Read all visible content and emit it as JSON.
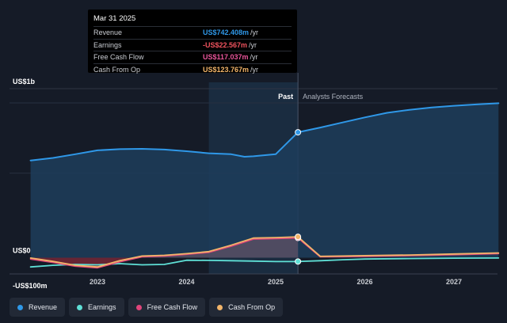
{
  "tooltip": {
    "date": "Mar 31 2025",
    "rows": [
      {
        "label": "Revenue",
        "value": "US$742.408m",
        "unit": "/yr",
        "color": "#2f98e8"
      },
      {
        "label": "Earnings",
        "value": "-US$22.567m",
        "unit": "/yr",
        "color": "#f0535e"
      },
      {
        "label": "Free Cash Flow",
        "value": "US$117.037m",
        "unit": "/yr",
        "color": "#e9559a"
      },
      {
        "label": "Cash From Op",
        "value": "US$123.767m",
        "unit": "/yr",
        "color": "#f2b56a"
      }
    ]
  },
  "legend": [
    {
      "label": "Revenue",
      "color": "#2f98e8"
    },
    {
      "label": "Earnings",
      "color": "#5fe0d6"
    },
    {
      "label": "Free Cash Flow",
      "color": "#e0457b"
    },
    {
      "label": "Cash From Op",
      "color": "#f2b56a"
    }
  ],
  "chart_data": {
    "type": "area",
    "y_tick_labels": [
      "US$1b",
      "US$0",
      "-US$100m"
    ],
    "y_ticks": [
      1000,
      0,
      -100
    ],
    "ylim": [
      -100,
      1000
    ],
    "xlim": [
      2022.2,
      2027.5
    ],
    "x_tick_labels": [
      "2023",
      "2024",
      "2025",
      "2026",
      "2027"
    ],
    "x_ticks": [
      2023,
      2024,
      2025,
      2026,
      2027
    ],
    "past_label": "Past",
    "forecast_label": "Analysts Forecasts",
    "highlight_range": [
      2024.25,
      2025.25
    ],
    "past_end": 2025.25,
    "series": [
      {
        "name": "Revenue",
        "color": "#2f98e8",
        "x": [
          2022.25,
          2022.5,
          2022.75,
          2023.0,
          2023.25,
          2023.5,
          2023.75,
          2024.0,
          2024.25,
          2024.5,
          2024.65,
          2024.75,
          2025.0,
          2025.25,
          2025.5,
          2025.75,
          2026.0,
          2026.25,
          2026.5,
          2026.75,
          2027.0,
          2027.25,
          2027.5
        ],
        "y": [
          575,
          590,
          612,
          635,
          642,
          644,
          640,
          630,
          618,
          612,
          597,
          600,
          612,
          742,
          770,
          800,
          830,
          857,
          875,
          889,
          899,
          907,
          914
        ]
      },
      {
        "name": "Earnings",
        "color": "#5fe0d6",
        "x": [
          2022.25,
          2022.5,
          2022.75,
          2023.0,
          2023.25,
          2023.5,
          2023.75,
          2024.0,
          2024.25,
          2024.5,
          2024.75,
          2025.0,
          2025.25,
          2025.5,
          2025.75,
          2026.0,
          2026.5,
          2027.0,
          2027.5
        ],
        "y": [
          -55,
          -45,
          -40,
          -42,
          -35,
          -42,
          -40,
          -15,
          -16,
          -18,
          -20,
          -23,
          -22.567,
          -18,
          -12,
          -8,
          -5,
          -3,
          -2
        ]
      },
      {
        "name": "Free Cash Flow",
        "color": "#e0457b",
        "x": [
          2022.25,
          2022.5,
          2022.75,
          2023.0,
          2023.25,
          2023.5,
          2023.75,
          2024.0,
          2024.25,
          2024.5,
          2024.75,
          2025.0,
          2025.25,
          2025.5,
          2025.75,
          2026.0,
          2026.5,
          2027.0,
          2027.5
        ],
        "y": [
          -8,
          -28,
          -50,
          -60,
          -25,
          5,
          10,
          20,
          32,
          68,
          110,
          113,
          117.037,
          5,
          6,
          8,
          12,
          18,
          24
        ]
      },
      {
        "name": "Cash From Op",
        "color": "#f2b56a",
        "x": [
          2022.25,
          2022.5,
          2022.75,
          2023.0,
          2023.25,
          2023.5,
          2023.75,
          2024.0,
          2024.25,
          2024.5,
          2024.75,
          2025.0,
          2025.25,
          2025.5,
          2025.75,
          2026.0,
          2026.5,
          2027.0,
          2027.5
        ],
        "y": [
          -2,
          -22,
          -45,
          -55,
          -18,
          10,
          14,
          24,
          36,
          74,
          116,
          119,
          123.767,
          8,
          10,
          12,
          16,
          22,
          28
        ]
      }
    ],
    "highlight_x": 2025.25
  }
}
